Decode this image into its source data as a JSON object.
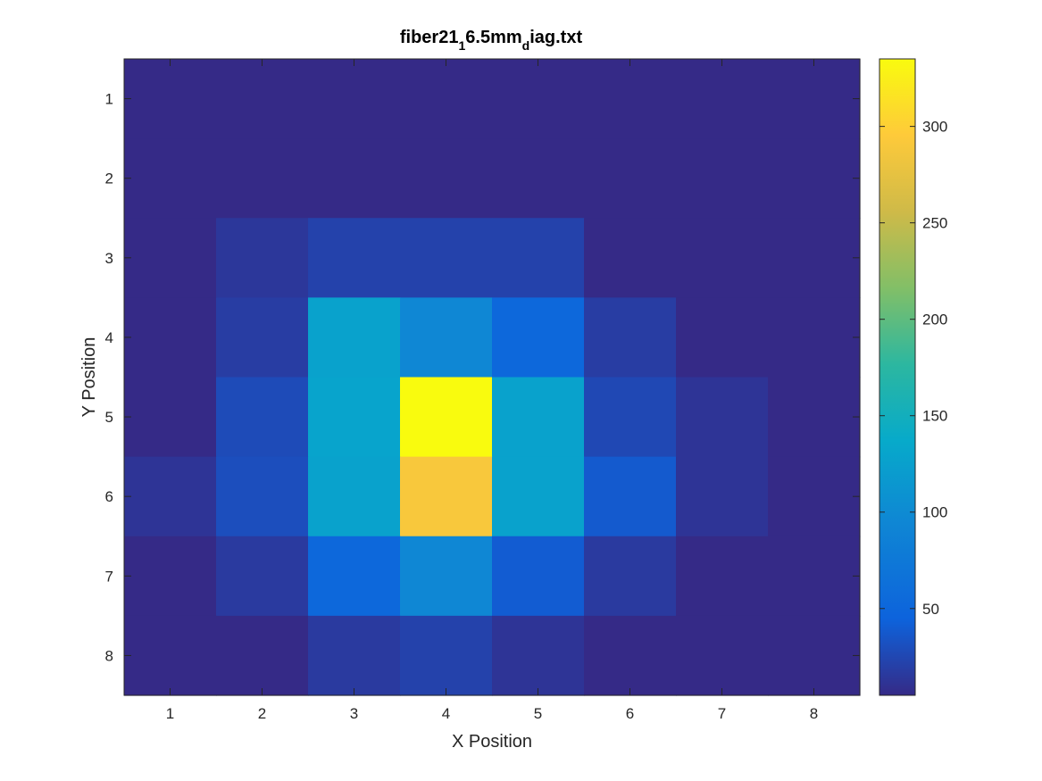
{
  "chart_data": {
    "type": "heatmap",
    "title": "fiber21",
    "title_parts": [
      {
        "text": "fiber21",
        "sub": false
      },
      {
        "text": "1",
        "sub": true
      },
      {
        "text": "6.5mm",
        "sub": false
      },
      {
        "text": "d",
        "sub": true
      },
      {
        "text": "iag.txt",
        "sub": false
      }
    ],
    "xlabel": "X Position",
    "ylabel": "Y Position",
    "x": [
      1,
      2,
      3,
      4,
      5,
      6,
      7,
      8
    ],
    "y": [
      1,
      2,
      3,
      4,
      5,
      6,
      7,
      8
    ],
    "x_ticks": [
      "1",
      "2",
      "3",
      "4",
      "5",
      "6",
      "7",
      "8"
    ],
    "y_ticks": [
      "1",
      "2",
      "3",
      "4",
      "5",
      "6",
      "7",
      "8"
    ],
    "y_direction": "top-to-bottom",
    "values": [
      [
        5,
        5,
        5,
        5,
        5,
        5,
        5,
        5
      ],
      [
        5,
        5,
        5,
        5,
        5,
        5,
        5,
        5
      ],
      [
        5,
        14,
        22,
        22,
        22,
        5,
        5,
        5
      ],
      [
        5,
        18,
        128,
        95,
        52,
        18,
        5,
        5
      ],
      [
        5,
        28,
        130,
        335,
        128,
        26,
        12,
        5
      ],
      [
        12,
        30,
        128,
        290,
        128,
        38,
        12,
        5
      ],
      [
        5,
        16,
        52,
        95,
        40,
        16,
        5,
        5
      ],
      [
        5,
        5,
        16,
        22,
        12,
        5,
        5,
        5
      ]
    ],
    "colorbar": {
      "range": [
        5,
        335
      ],
      "ticks": [
        50,
        100,
        150,
        200,
        250,
        300
      ],
      "tick_labels": [
        "50",
        "100",
        "150",
        "200",
        "250",
        "300"
      ],
      "colormap": "parula",
      "position": "right"
    },
    "colormap_stops": [
      [
        "#352a87",
        0.0
      ],
      [
        "#0d63dc",
        0.12
      ],
      [
        "#0f86d4",
        0.27
      ],
      [
        "#07aaca",
        0.4
      ],
      [
        "#2cb7a0",
        0.52
      ],
      [
        "#82bf67",
        0.64
      ],
      [
        "#cfba48",
        0.76
      ],
      [
        "#feca3a",
        0.88
      ],
      [
        "#f9fb0e",
        1.0
      ]
    ],
    "grid": false
  }
}
